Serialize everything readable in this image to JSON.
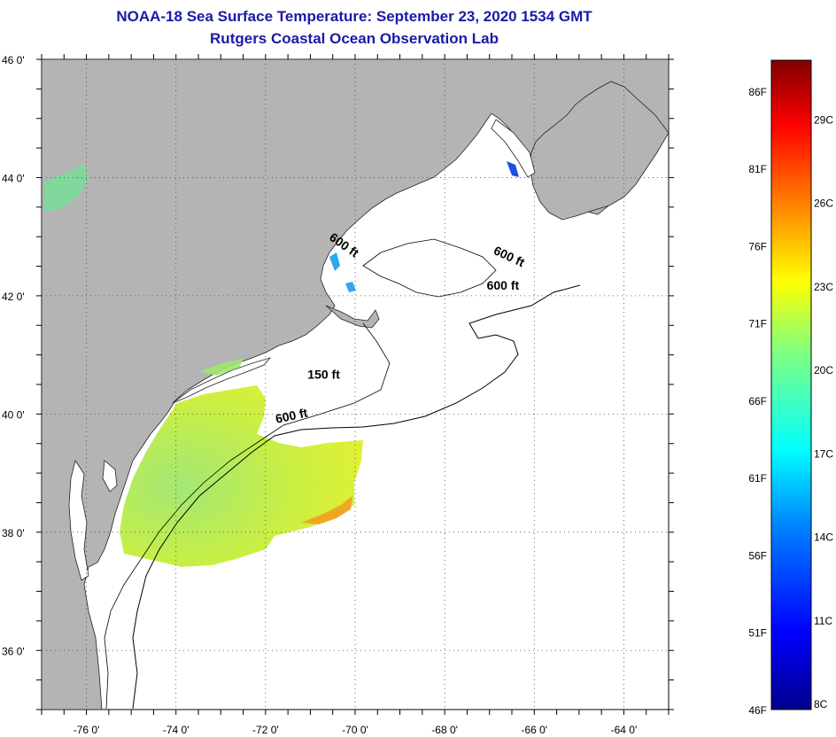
{
  "header": {
    "title": "NOAA-18 Sea Surface Temperature:  September 23, 2020 1534 GMT",
    "subtitle": "Rutgers Coastal Ocean Observation Lab"
  },
  "map": {
    "lon_range": [
      -77,
      -63
    ],
    "lat_range": [
      35,
      46
    ],
    "lat_labels": [
      {
        "lat": 46,
        "text": "46 0'"
      },
      {
        "lat": 44,
        "text": "44 0'"
      },
      {
        "lat": 42,
        "text": "42 0'"
      },
      {
        "lat": 40,
        "text": "40 0'"
      },
      {
        "lat": 38,
        "text": "38 0'"
      },
      {
        "lat": 36,
        "text": "36 0'"
      }
    ],
    "lon_labels": [
      {
        "lon": -76,
        "text": "-76 0'"
      },
      {
        "lon": -74,
        "text": "-74 0'"
      },
      {
        "lon": -72,
        "text": "-72 0'"
      },
      {
        "lon": -70,
        "text": "-70 0'"
      },
      {
        "lon": -68,
        "text": "-68 0'"
      },
      {
        "lon": -66,
        "text": "-66 0'"
      },
      {
        "lon": -64,
        "text": "-64 0'"
      }
    ],
    "contour_labels": [
      {
        "text": "600 ft",
        "lon": -70.3,
        "lat": 42.8,
        "rot": 35
      },
      {
        "text": "600 ft",
        "lon": -66.6,
        "lat": 42.6,
        "rot": 25
      },
      {
        "text": "600 ft",
        "lon": -66.7,
        "lat": 42.1,
        "rot": 0
      },
      {
        "text": "150 ft",
        "lon": -70.7,
        "lat": 40.6,
        "rot": 0
      },
      {
        "text": "600 ft",
        "lon": -71.4,
        "lat": 39.9,
        "rot": -12
      }
    ],
    "colors": {
      "land": "#b4b4b4",
      "ocean": "#ffffff",
      "grid": "#333333"
    }
  },
  "colorbar": {
    "min_f": 46,
    "max_f": 88,
    "f_labels": [
      "86F",
      "81F",
      "76F",
      "71F",
      "66F",
      "61F",
      "56F",
      "51F",
      "46F"
    ],
    "c_labels": [
      "29C",
      "26C",
      "23C",
      "20C",
      "17C",
      "14C",
      "11C",
      "8C"
    ]
  }
}
